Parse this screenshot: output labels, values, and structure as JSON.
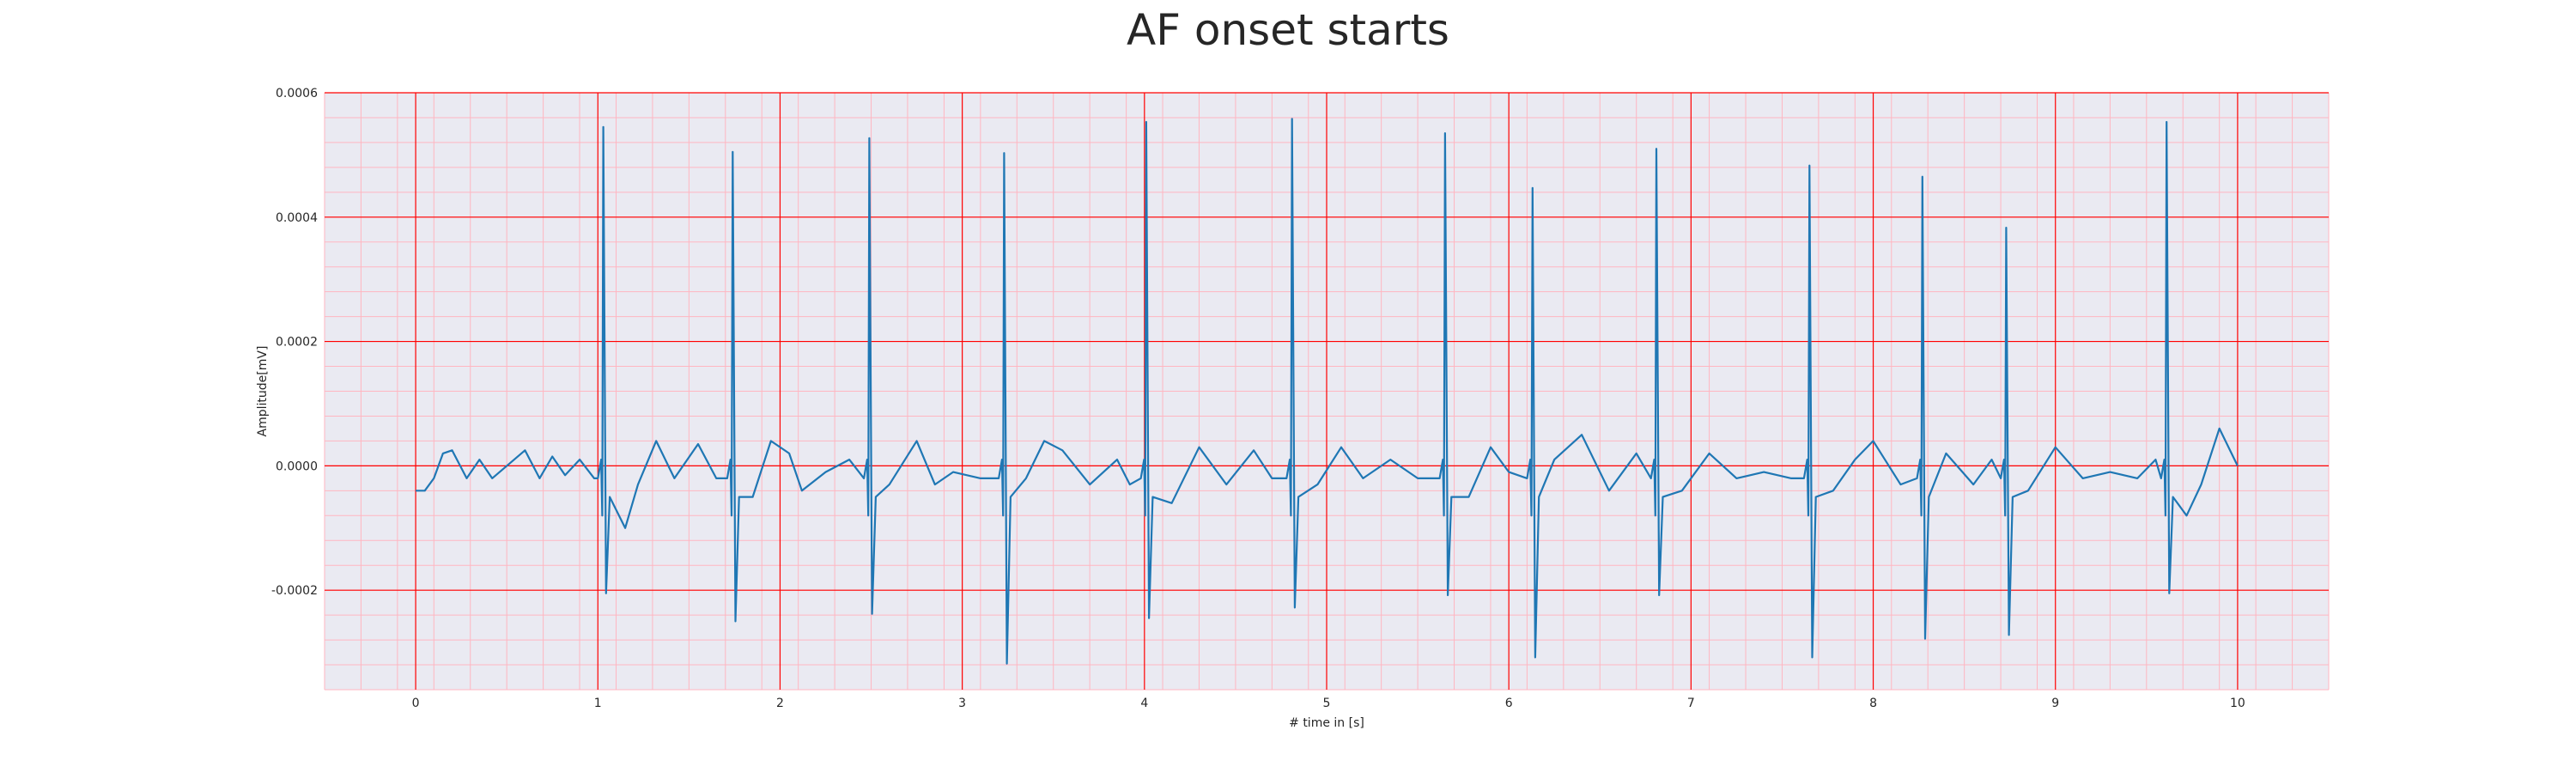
{
  "chart_data": {
    "type": "line",
    "title": "AF onset starts",
    "xlabel": "# time in [s]",
    "ylabel": "Amplitude[mV]",
    "xlim": [
      -0.5,
      10.5
    ],
    "ylim": [
      -0.00036,
      0.0006
    ],
    "x_ticks": [
      0,
      1,
      2,
      3,
      4,
      5,
      6,
      7,
      8,
      9,
      10
    ],
    "x_tick_labels": [
      "0",
      "1",
      "2",
      "3",
      "4",
      "5",
      "6",
      "7",
      "8",
      "9",
      "10"
    ],
    "y_ticks": [
      -0.0002,
      0.0,
      0.0002,
      0.0004,
      0.0006
    ],
    "y_tick_labels": [
      "-0.0002",
      "0.0000",
      "0.0002",
      "0.0004",
      "0.0006"
    ],
    "grid": true,
    "minor_grid": true,
    "colors": {
      "line": "#1f77b4",
      "background": "#eaeaf2",
      "major_grid": "#ff0000",
      "minor_grid": "#ffb6c1"
    },
    "beats": [
      {
        "t": 1.03,
        "peak": 0.000545,
        "trough": -0.000205
      },
      {
        "t": 1.74,
        "peak": 0.000505,
        "trough": -0.00025
      },
      {
        "t": 2.49,
        "peak": 0.000527,
        "trough": -0.000238
      },
      {
        "t": 3.23,
        "peak": 0.000503,
        "trough": -0.000318
      },
      {
        "t": 4.01,
        "peak": 0.000553,
        "trough": -0.000245
      },
      {
        "t": 4.81,
        "peak": 0.000558,
        "trough": -0.000228
      },
      {
        "t": 5.65,
        "peak": 0.000535,
        "trough": -0.000208
      },
      {
        "t": 6.13,
        "peak": 0.000447,
        "trough": -0.000308
      },
      {
        "t": 6.81,
        "peak": 0.00051,
        "trough": -0.000208
      },
      {
        "t": 7.65,
        "peak": 0.000483,
        "trough": -0.000308
      },
      {
        "t": 8.27,
        "peak": 0.000465,
        "trough": -0.000278
      },
      {
        "t": 8.73,
        "peak": 0.000383,
        "trough": -0.000272
      },
      {
        "t": 9.61,
        "peak": 0.000553,
        "trough": -0.000205
      }
    ],
    "baseline_points": [
      [
        0.0,
        -4e-05
      ],
      [
        0.05,
        -4e-05
      ],
      [
        0.1,
        -2e-05
      ],
      [
        0.15,
        2e-05
      ],
      [
        0.2,
        2.5e-05
      ],
      [
        0.28,
        -2e-05
      ],
      [
        0.35,
        1e-05
      ],
      [
        0.42,
        -2e-05
      ],
      [
        0.5,
        0.0
      ],
      [
        0.6,
        2.5e-05
      ],
      [
        0.68,
        -2e-05
      ],
      [
        0.75,
        1.5e-05
      ],
      [
        0.82,
        -1.5e-05
      ],
      [
        0.9,
        1e-05
      ],
      [
        0.98,
        -2e-05
      ],
      [
        1.15,
        -0.0001
      ],
      [
        1.22,
        -3e-05
      ],
      [
        1.32,
        4e-05
      ],
      [
        1.42,
        -2e-05
      ],
      [
        1.55,
        3.5e-05
      ],
      [
        1.65,
        -2e-05
      ],
      [
        1.85,
        -5e-05
      ],
      [
        1.95,
        4e-05
      ],
      [
        2.05,
        2e-05
      ],
      [
        2.12,
        -4e-05
      ],
      [
        2.25,
        -1e-05
      ],
      [
        2.38,
        1e-05
      ],
      [
        2.6,
        -3e-05
      ],
      [
        2.75,
        4e-05
      ],
      [
        2.85,
        -3e-05
      ],
      [
        2.95,
        -1e-05
      ],
      [
        3.1,
        -2e-05
      ],
      [
        3.35,
        -2e-05
      ],
      [
        3.45,
        4e-05
      ],
      [
        3.55,
        2.5e-05
      ],
      [
        3.7,
        -3e-05
      ],
      [
        3.85,
        1e-05
      ],
      [
        3.92,
        -3e-05
      ],
      [
        4.15,
        -6e-05
      ],
      [
        4.3,
        3e-05
      ],
      [
        4.45,
        -3e-05
      ],
      [
        4.6,
        2.5e-05
      ],
      [
        4.7,
        -2e-05
      ],
      [
        4.95,
        -3e-05
      ],
      [
        5.08,
        3e-05
      ],
      [
        5.2,
        -2e-05
      ],
      [
        5.35,
        1e-05
      ],
      [
        5.5,
        -2e-05
      ],
      [
        5.78,
        -5e-05
      ],
      [
        5.9,
        3e-05
      ],
      [
        6.0,
        -1e-05
      ],
      [
        6.25,
        1e-05
      ],
      [
        6.4,
        5e-05
      ],
      [
        6.55,
        -4e-05
      ],
      [
        6.7,
        2e-05
      ],
      [
        6.95,
        -4e-05
      ],
      [
        7.1,
        2e-05
      ],
      [
        7.25,
        -2e-05
      ],
      [
        7.4,
        -1e-05
      ],
      [
        7.55,
        -2e-05
      ],
      [
        7.78,
        -4e-05
      ],
      [
        7.9,
        1e-05
      ],
      [
        8.0,
        4e-05
      ],
      [
        8.15,
        -3e-05
      ],
      [
        8.4,
        2e-05
      ],
      [
        8.55,
        -3e-05
      ],
      [
        8.65,
        1e-05
      ],
      [
        8.85,
        -4e-05
      ],
      [
        9.0,
        3e-05
      ],
      [
        9.15,
        -2e-05
      ],
      [
        9.3,
        -1e-05
      ],
      [
        9.45,
        -2e-05
      ],
      [
        9.55,
        1e-05
      ],
      [
        9.72,
        -8e-05
      ],
      [
        9.8,
        -3e-05
      ],
      [
        9.9,
        6e-05
      ],
      [
        10.0,
        0.0
      ]
    ]
  }
}
